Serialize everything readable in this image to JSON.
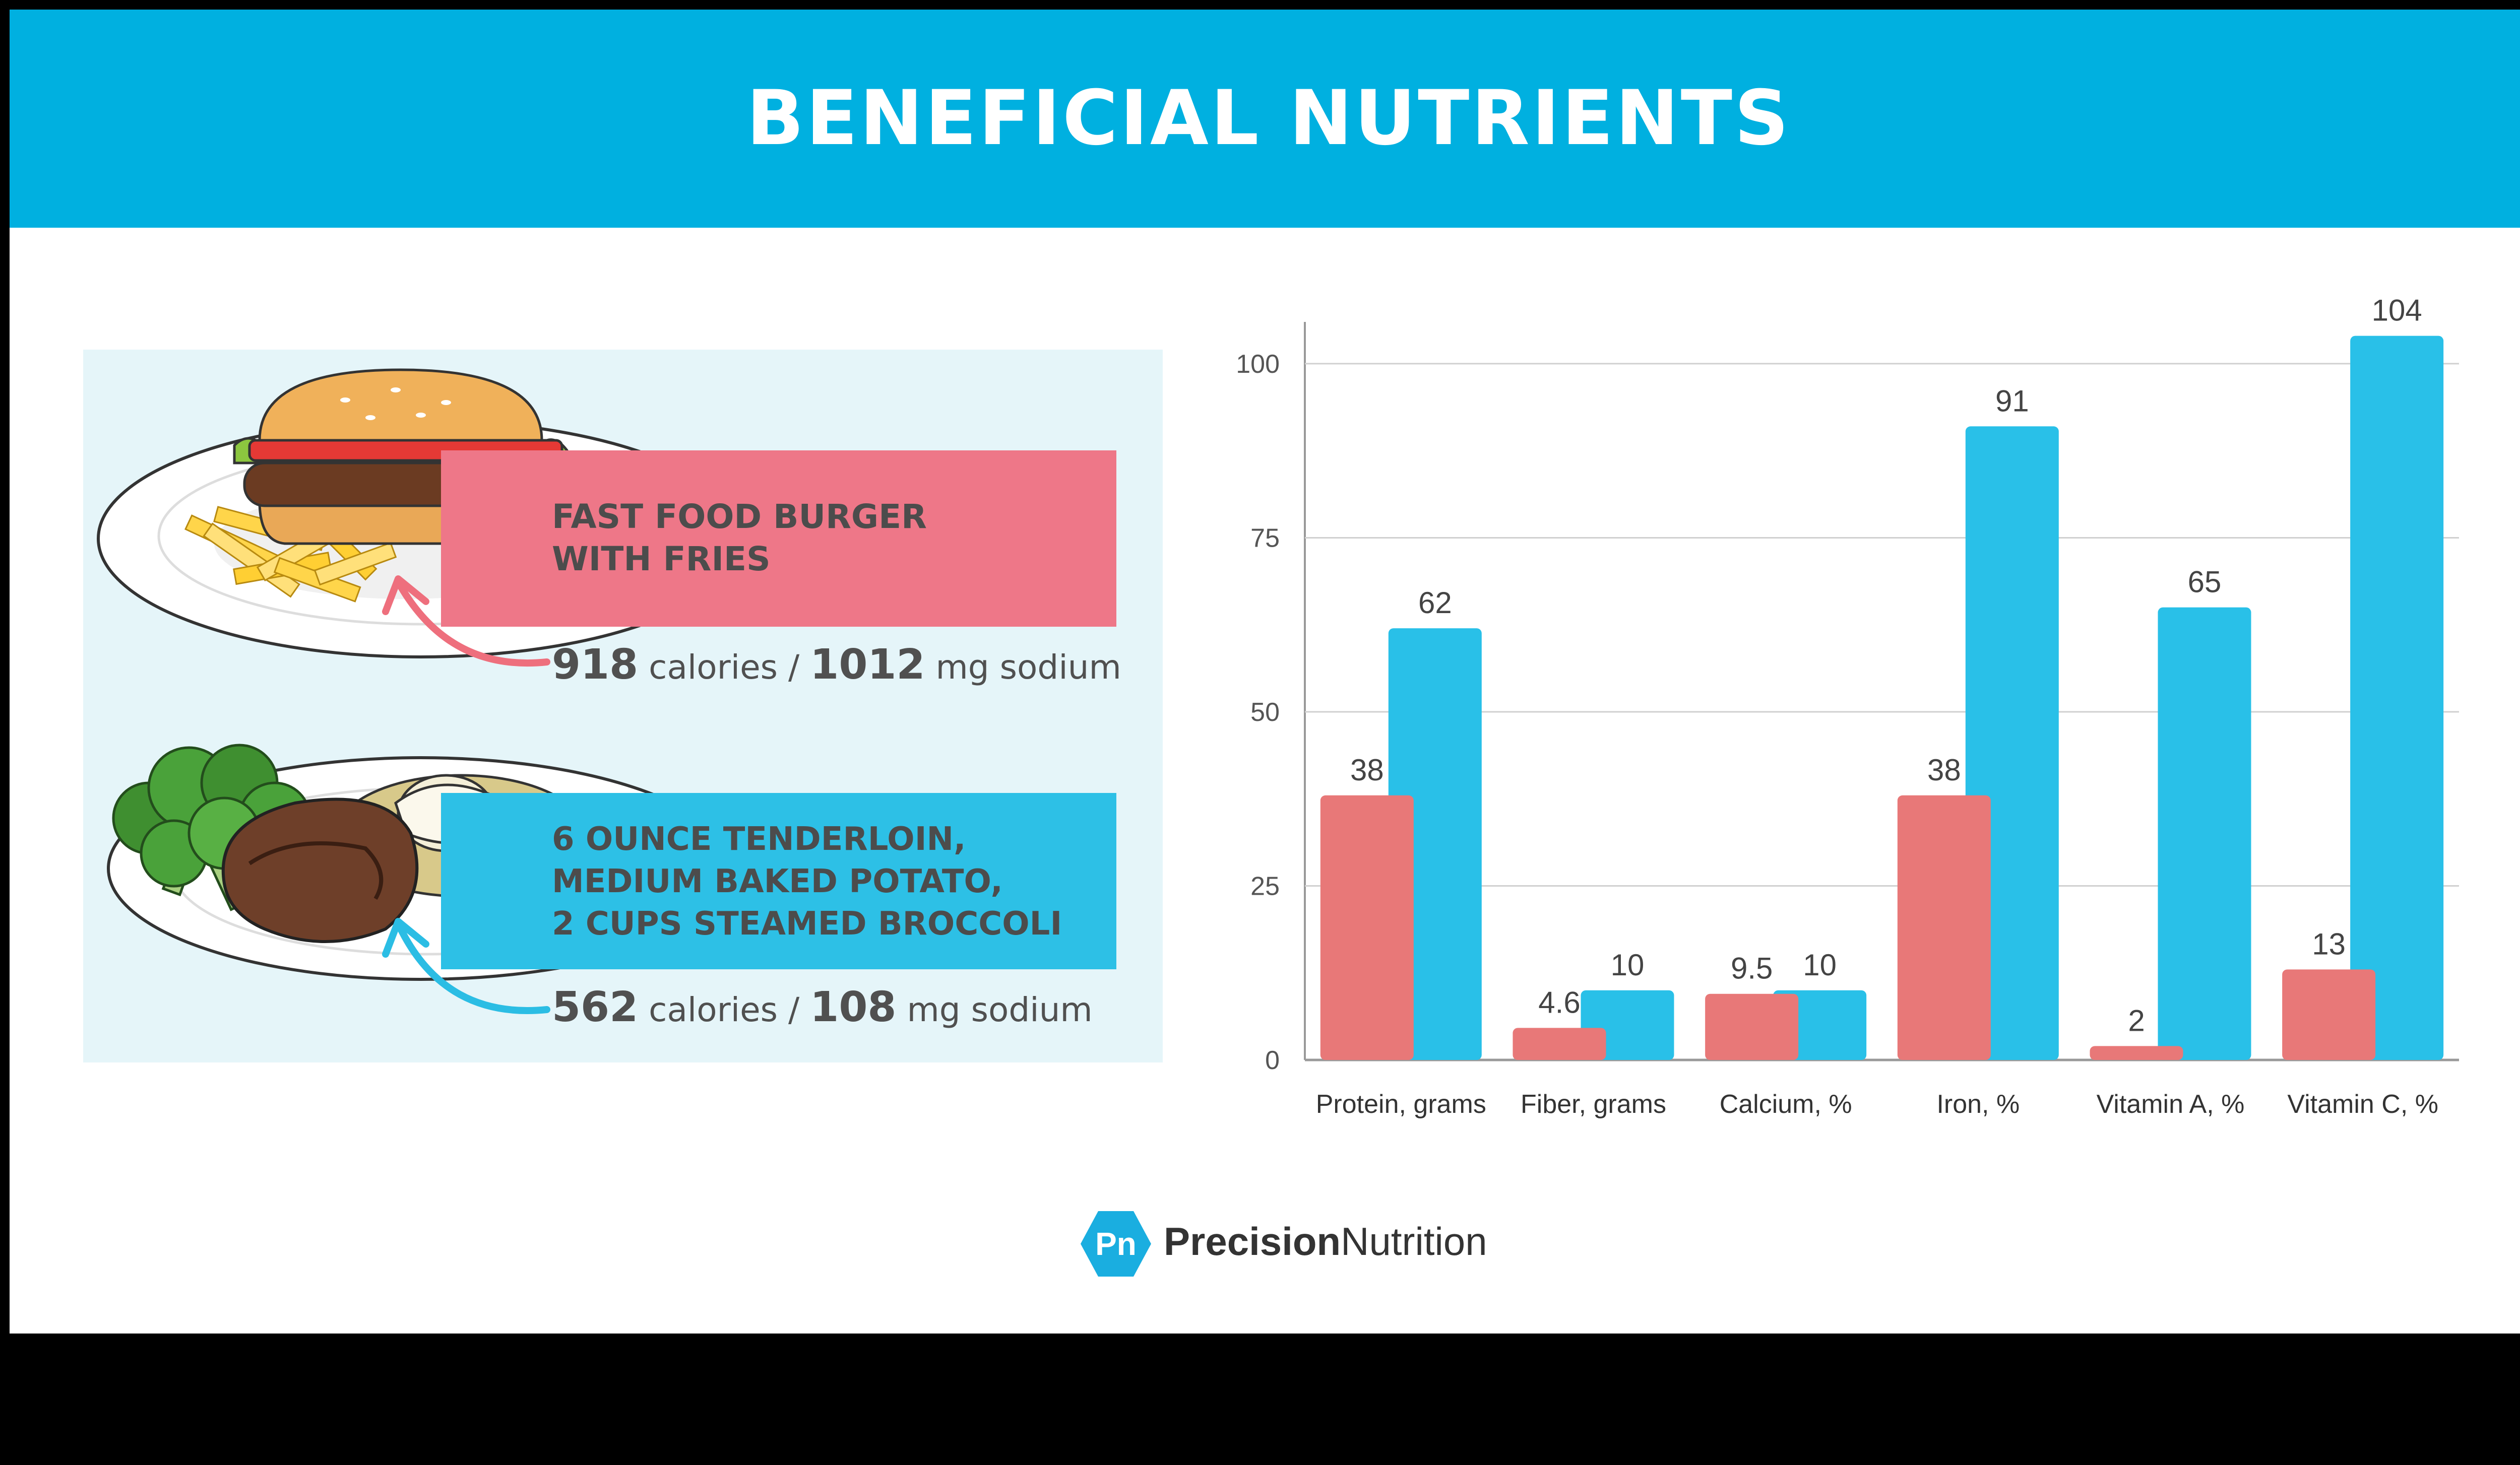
{
  "title": "BENEFICIAL NUTRIENTS",
  "meals": [
    {
      "name_lines": [
        "FAST FOOD BURGER",
        "WITH FRIES"
      ],
      "calories": "918",
      "calories_unit": "calories /",
      "sodium": "1012",
      "sodium_unit": "mg sodium",
      "color": "#ee7788"
    },
    {
      "name_lines": [
        "6 OUNCE TENDERLOIN,",
        "MEDIUM BAKED POTATO,",
        "2 CUPS STEAMED BROCCOLI"
      ],
      "calories": "562",
      "calories_unit": "calories /",
      "sodium": "108",
      "sodium_unit": "mg sodium",
      "color": "#2dc0e6"
    }
  ],
  "chart_data": {
    "type": "bar",
    "title": "",
    "xlabel": "",
    "ylabel": "",
    "categories": [
      "Protein, grams",
      "Fiber, grams",
      "Calcium, %",
      "Iron, %",
      "Vitamin A, %",
      "Vitamin C, %"
    ],
    "series": [
      {
        "name": "Fast food burger with fries",
        "color": "#e87878",
        "values": [
          38,
          4.6,
          9.5,
          38,
          2,
          13
        ]
      },
      {
        "name": "Tenderloin, baked potato, broccoli",
        "color": "#29c0e8",
        "values": [
          62,
          10,
          10,
          91,
          65,
          104
        ]
      }
    ],
    "yticks": [
      0,
      25,
      50,
      75,
      100
    ],
    "ylim": [
      0,
      106
    ],
    "grid": true
  },
  "brand": {
    "bold": "Precision",
    "regular": "Nutrition",
    "logo_text": "Pn"
  },
  "colors": {
    "header": "#00b0e0",
    "panel": "#e5f5f9",
    "outer": "#000000"
  }
}
